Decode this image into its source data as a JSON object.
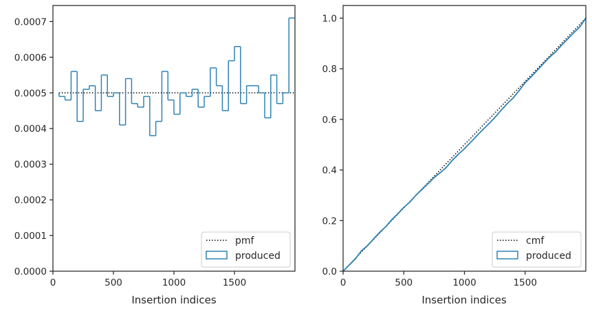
{
  "chart_data": [
    {
      "type": "histogram",
      "xlabel": "Insertion indices",
      "ylabel": "",
      "xlim": [
        0,
        2000
      ],
      "ylim": [
        0,
        0.000745
      ],
      "xticks": [
        {
          "value": 0,
          "label": "0"
        },
        {
          "value": 500,
          "label": "500"
        },
        {
          "value": 1000,
          "label": "1000"
        },
        {
          "value": 1500,
          "label": "1500"
        }
      ],
      "yticks": [
        {
          "value": 0,
          "label": "0.0000"
        },
        {
          "value": 0.0001,
          "label": "0.0001"
        },
        {
          "value": 0.0002,
          "label": "0.0002"
        },
        {
          "value": 0.0003,
          "label": "0.0003"
        },
        {
          "value": 0.0004,
          "label": "0.0004"
        },
        {
          "value": 0.0005,
          "label": "0.0005"
        },
        {
          "value": 0.0006,
          "label": "0.0006"
        },
        {
          "value": 0.0007,
          "label": "0.0007"
        }
      ],
      "reference_line": {
        "name": "pmf",
        "y": 0.0005,
        "x_range": [
          50,
          2000
        ],
        "color": "#000000",
        "style": "dotted"
      },
      "histogram": {
        "name": "produced",
        "color": "#2e82b4",
        "bin_edges": [
          50,
          100,
          150,
          200,
          250,
          300,
          350,
          400,
          450,
          500,
          550,
          600,
          650,
          700,
          750,
          800,
          850,
          900,
          950,
          1000,
          1050,
          1100,
          1150,
          1200,
          1250,
          1300,
          1350,
          1400,
          1450,
          1500,
          1550,
          1600,
          1650,
          1700,
          1750,
          1800,
          1850,
          1900,
          1950,
          2000
        ],
        "values": [
          0.00049,
          0.00048,
          0.00056,
          0.00042,
          0.00051,
          0.00052,
          0.00045,
          0.00055,
          0.00049,
          0.0005,
          0.00041,
          0.00054,
          0.00047,
          0.00046,
          0.00049,
          0.00038,
          0.00042,
          0.00056,
          0.00048,
          0.00044,
          0.0005,
          0.00049,
          0.00051,
          0.00046,
          0.00049,
          0.00057,
          0.00052,
          0.00045,
          0.00059,
          0.00063,
          0.00047,
          0.00052,
          0.00052,
          0.0005,
          0.00043,
          0.00055,
          0.00047,
          0.0005,
          0.00071
        ]
      },
      "legend": {
        "position": "lower-right",
        "entries": [
          "pmf",
          "produced"
        ]
      }
    },
    {
      "type": "line",
      "xlabel": "Insertion indices",
      "ylabel": "",
      "xlim": [
        0,
        2000
      ],
      "ylim": [
        0,
        1.05
      ],
      "xticks": [
        {
          "value": 0,
          "label": "0"
        },
        {
          "value": 500,
          "label": "500"
        },
        {
          "value": 1000,
          "label": "1000"
        },
        {
          "value": 1500,
          "label": "1500"
        }
      ],
      "yticks": [
        {
          "value": 0,
          "label": "0.0"
        },
        {
          "value": 0.2,
          "label": "0.2"
        },
        {
          "value": 0.4,
          "label": "0.4"
        },
        {
          "value": 0.6,
          "label": "0.6"
        },
        {
          "value": 0.8,
          "label": "0.8"
        },
        {
          "value": 1.0,
          "label": "1.0"
        }
      ],
      "series": [
        {
          "name": "cmf",
          "color": "#000000",
          "style": "dotted",
          "x": [
            0,
            2000
          ],
          "y": [
            0,
            1.0
          ]
        },
        {
          "name": "produced",
          "color": "#2e82b4",
          "style": "solid",
          "x": [
            0,
            50,
            100,
            150,
            200,
            250,
            300,
            350,
            400,
            450,
            500,
            550,
            600,
            650,
            700,
            750,
            800,
            850,
            900,
            950,
            1000,
            1050,
            1100,
            1150,
            1200,
            1250,
            1300,
            1350,
            1400,
            1450,
            1500,
            1550,
            1600,
            1650,
            1700,
            1750,
            1800,
            1850,
            1900,
            1950,
            2000
          ],
          "y": [
            0,
            0.024,
            0.048,
            0.08,
            0.101,
            0.127,
            0.153,
            0.175,
            0.203,
            0.227,
            0.252,
            0.273,
            0.3,
            0.323,
            0.346,
            0.37,
            0.389,
            0.41,
            0.438,
            0.462,
            0.484,
            0.509,
            0.534,
            0.559,
            0.582,
            0.607,
            0.635,
            0.661,
            0.684,
            0.713,
            0.745,
            0.768,
            0.794,
            0.82,
            0.845,
            0.866,
            0.893,
            0.917,
            0.942,
            0.965,
            1.0
          ]
        }
      ],
      "legend": {
        "position": "lower-right",
        "entries": [
          "cmf",
          "produced"
        ]
      }
    }
  ]
}
